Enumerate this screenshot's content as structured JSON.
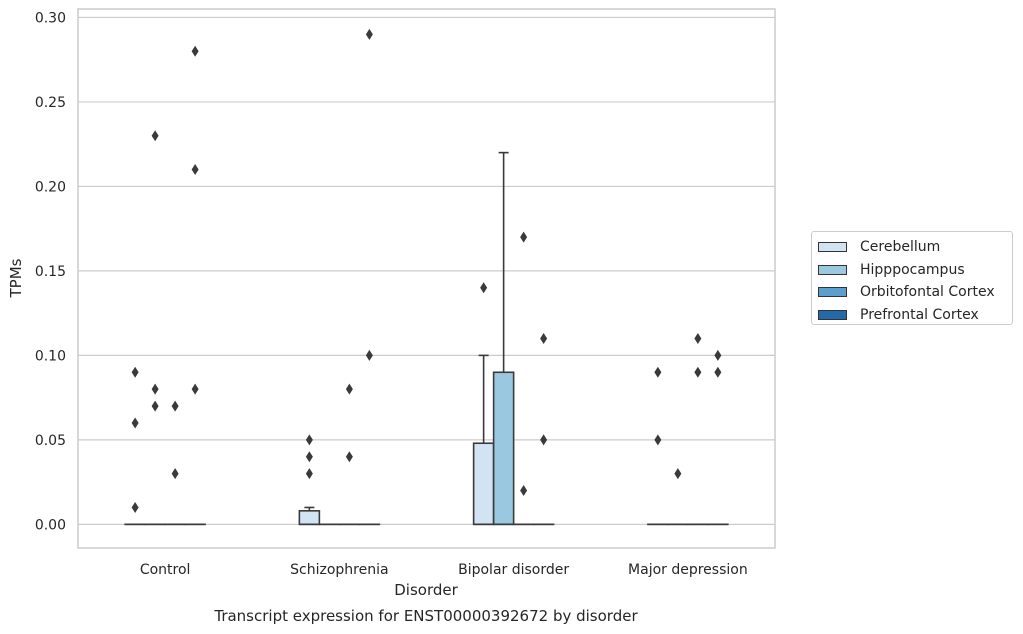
{
  "chart_data": {
    "type": "box",
    "title": "Transcript expression for ENST00000392672 by disorder",
    "xlabel": "Disorder",
    "ylabel": "TPMs",
    "ylim": [
      -0.014,
      0.305
    ],
    "yticks": [
      "0.00",
      "0.05",
      "0.10",
      "0.15",
      "0.20",
      "0.25",
      "0.30"
    ],
    "grid": true,
    "legend_position": "right",
    "categories": [
      "Control",
      "Schizophrenia",
      "Bipolar disorder",
      "Major depression"
    ],
    "series": [
      {
        "name": "Cerebellum",
        "color": "#d2e3f3",
        "boxes": [
          {
            "q1": 0,
            "median": 0,
            "q3": 0,
            "whislo": 0,
            "whishi": 0,
            "fliers": [
              0.09,
              0.06,
              0.01
            ]
          },
          {
            "q1": 0,
            "median": 0,
            "q3": 0.008,
            "whislo": 0,
            "whishi": 0.01,
            "fliers": [
              0.05,
              0.04,
              0.03
            ]
          },
          {
            "q1": 0,
            "median": 0,
            "q3": 0.048,
            "whislo": 0,
            "whishi": 0.1,
            "fliers": [
              0.14
            ]
          },
          {
            "q1": 0,
            "median": 0,
            "q3": 0,
            "whislo": 0,
            "whishi": 0,
            "fliers": [
              0.09,
              0.05
            ]
          }
        ]
      },
      {
        "name": "Hipppocampus",
        "color": "#9ac8e0",
        "boxes": [
          {
            "q1": 0,
            "median": 0,
            "q3": 0,
            "whislo": 0,
            "whishi": 0,
            "fliers": [
              0.23,
              0.08,
              0.07
            ]
          },
          {
            "q1": 0,
            "median": 0,
            "q3": 0,
            "whislo": 0,
            "whishi": 0,
            "fliers": []
          },
          {
            "q1": 0,
            "median": 0,
            "q3": 0.09,
            "whislo": 0,
            "whishi": 0.22,
            "fliers": []
          },
          {
            "q1": 0,
            "median": 0,
            "q3": 0,
            "whislo": 0,
            "whishi": 0,
            "fliers": [
              0.03
            ]
          }
        ]
      },
      {
        "name": "Orbitofontal Cortex",
        "color": "#5a9fcd",
        "boxes": [
          {
            "q1": 0,
            "median": 0,
            "q3": 0,
            "whislo": 0,
            "whishi": 0,
            "fliers": [
              0.07,
              0.03
            ]
          },
          {
            "q1": 0,
            "median": 0,
            "q3": 0,
            "whislo": 0,
            "whishi": 0,
            "fliers": [
              0.08,
              0.04
            ]
          },
          {
            "q1": 0,
            "median": 0,
            "q3": 0,
            "whislo": 0,
            "whishi": 0,
            "fliers": [
              0.17,
              0.02
            ]
          },
          {
            "q1": 0,
            "median": 0,
            "q3": 0,
            "whislo": 0,
            "whishi": 0,
            "fliers": [
              0.11,
              0.09
            ]
          }
        ]
      },
      {
        "name": "Prefrontal Cortex",
        "color": "#2469a9",
        "boxes": [
          {
            "q1": 0,
            "median": 0,
            "q3": 0,
            "whislo": 0,
            "whishi": 0,
            "fliers": [
              0.28,
              0.21,
              0.08
            ]
          },
          {
            "q1": 0,
            "median": 0,
            "q3": 0,
            "whislo": 0,
            "whishi": 0,
            "fliers": [
              0.29,
              0.1
            ]
          },
          {
            "q1": 0,
            "median": 0,
            "q3": 0,
            "whislo": 0,
            "whishi": 0,
            "fliers": [
              0.11,
              0.05
            ]
          },
          {
            "q1": 0,
            "median": 0,
            "q3": 0,
            "whislo": 0,
            "whishi": 0,
            "fliers": [
              0.1,
              0.09
            ]
          }
        ]
      }
    ]
  }
}
